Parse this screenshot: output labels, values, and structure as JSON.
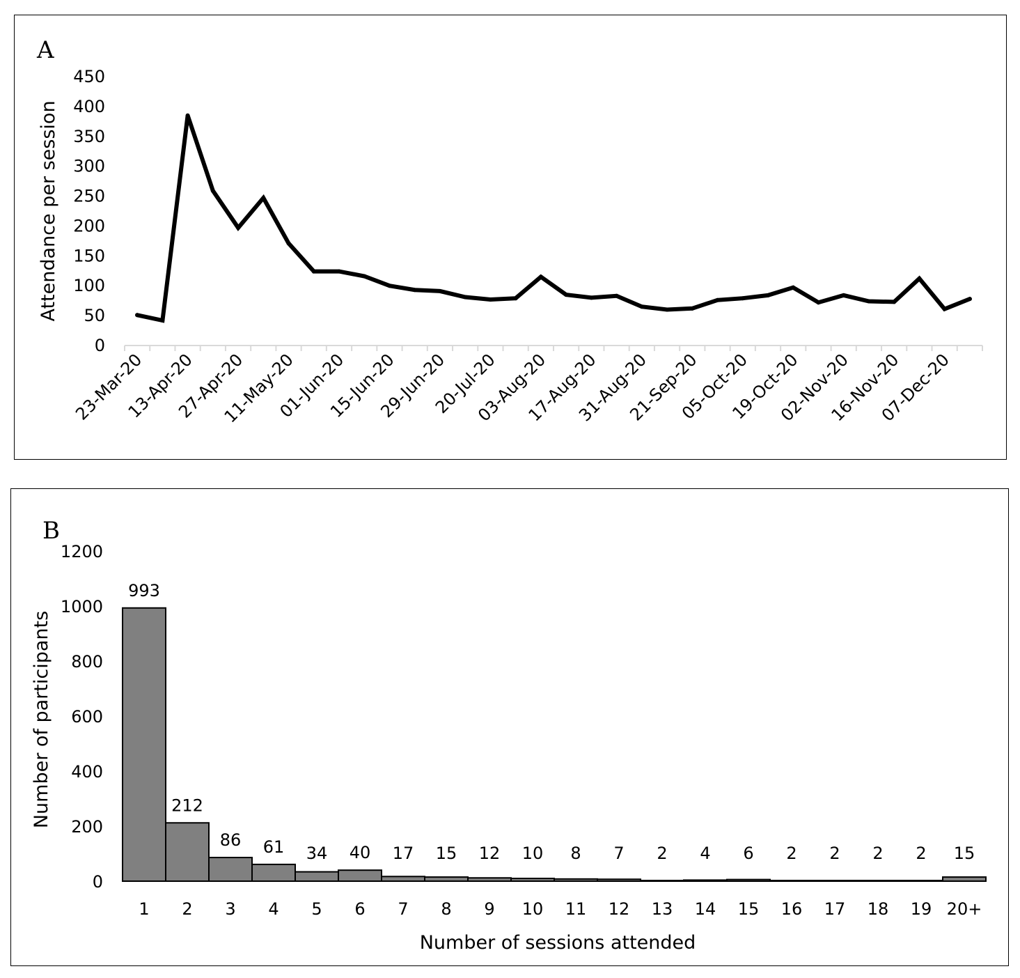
{
  "chart_data": [
    {
      "panel": "A",
      "type": "line",
      "ylabel": "Attendance per session",
      "xlabel": "",
      "ylim": [
        0,
        450
      ],
      "yticks": [
        0,
        50,
        100,
        150,
        200,
        250,
        300,
        350,
        400,
        450
      ],
      "xtick_labels": [
        "23-Mar-20",
        "13-Apr-20",
        "27-Apr-20",
        "11-May-20",
        "01-Jun-20",
        "15-Jun-20",
        "29-Jun-20",
        "20-Jul-20",
        "03-Aug-20",
        "17-Aug-20",
        "31-Aug-20",
        "21-Sep-20",
        "05-Oct-20",
        "19-Oct-20",
        "02-Nov-20",
        "16-Nov-20",
        "07-Dec-20"
      ],
      "grid": false,
      "legend": "none",
      "color": "#000000",
      "values": [
        51,
        42,
        385,
        259,
        197,
        247,
        171,
        124,
        124,
        116,
        100,
        93,
        91,
        81,
        77,
        79,
        115,
        85,
        80,
        83,
        65,
        60,
        62,
        76,
        79,
        84,
        97,
        72,
        84,
        74,
        73,
        112,
        61,
        78
      ]
    },
    {
      "panel": "B",
      "type": "bar",
      "xlabel": "Number of sessions attended",
      "ylabel": "Number of participants",
      "ylim": [
        0,
        1200
      ],
      "yticks": [
        0,
        200,
        400,
        600,
        800,
        1000,
        1200
      ],
      "categories": [
        "1",
        "2",
        "3",
        "4",
        "5",
        "6",
        "7",
        "8",
        "9",
        "10",
        "11",
        "12",
        "13",
        "14",
        "15",
        "16",
        "17",
        "18",
        "19",
        "20+"
      ],
      "values": [
        993,
        212,
        86,
        61,
        34,
        40,
        17,
        15,
        12,
        10,
        8,
        7,
        2,
        4,
        6,
        2,
        2,
        2,
        2,
        15
      ],
      "data_labels": [
        "993",
        "212",
        "86",
        "61",
        "34",
        "40",
        "17",
        "15",
        "12",
        "10",
        "8",
        "7",
        "2",
        "4",
        "6",
        "2",
        "2",
        "2",
        "2",
        "15"
      ],
      "grid": false,
      "legend": "none",
      "bar_color": "#808080",
      "edge_color": "#000000"
    }
  ],
  "panels": {
    "a_label": "A",
    "b_label": "B"
  }
}
